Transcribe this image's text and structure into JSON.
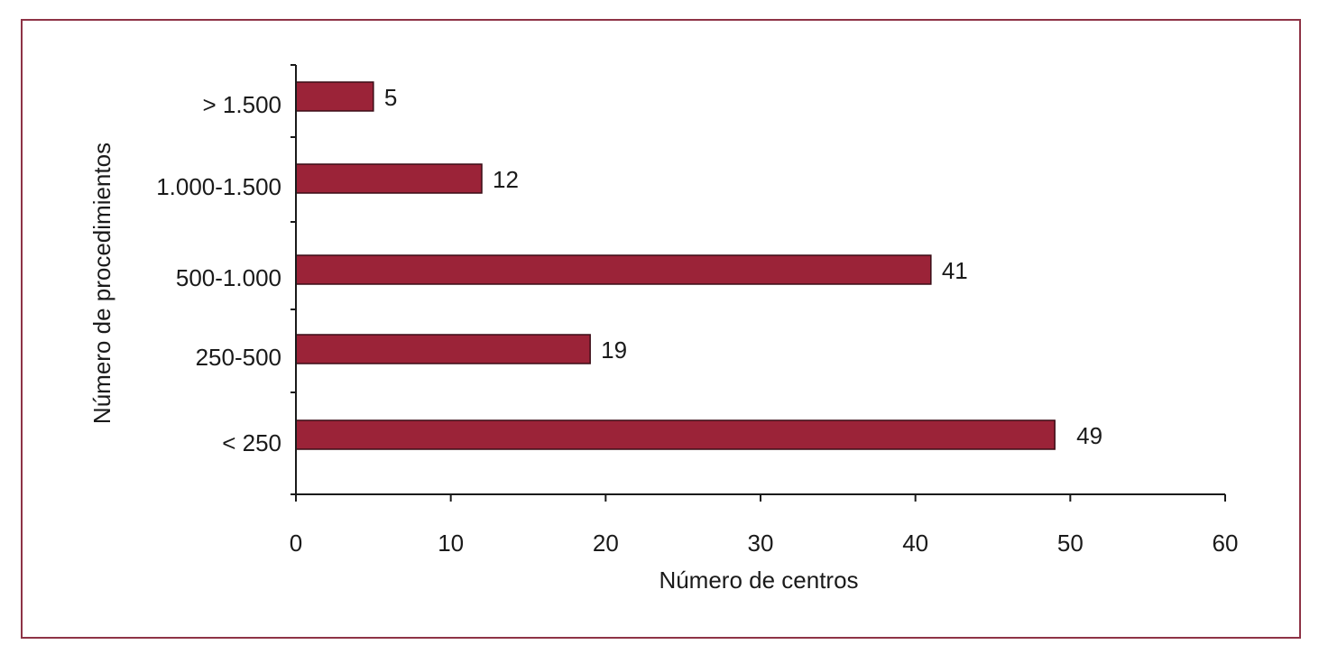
{
  "colors": {
    "bar": "#9b2338",
    "bar_stroke": "#3a0d16",
    "frame": "#8e3346",
    "axis": "#1a1a1a"
  },
  "chart_data": {
    "type": "bar",
    "orientation": "horizontal",
    "categories": [
      "> 1.500",
      "1.000-1.500",
      "500-1.000",
      "250-500",
      "< 250"
    ],
    "values": [
      5,
      12,
      41,
      19,
      49
    ],
    "value_labels": [
      "5",
      "12",
      "41",
      "19",
      "49"
    ],
    "xlabel": "Número de centros",
    "ylabel": "Número de  procedimientos",
    "xlim": [
      0,
      60
    ],
    "xticks": [
      0,
      10,
      20,
      30,
      40,
      50,
      60
    ],
    "xtick_labels": [
      "0",
      "10",
      "20",
      "30",
      "40",
      "50",
      "60"
    ],
    "grid": false,
    "legend": "none"
  }
}
